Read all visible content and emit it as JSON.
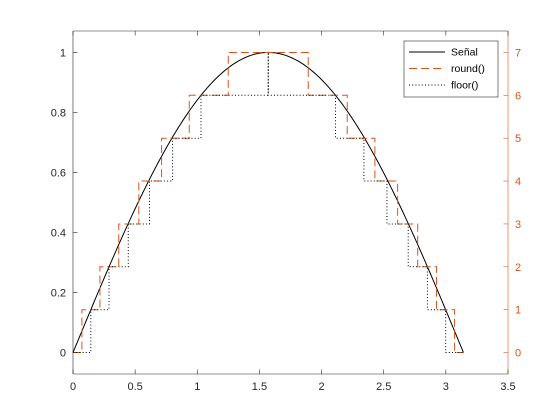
{
  "chart_data": {
    "type": "line",
    "x_range": [
      0,
      3.5
    ],
    "x_ticks": [
      "0",
      "0.5",
      "1",
      "1.5",
      "2",
      "2.5",
      "3",
      "3.5"
    ],
    "y_left_range": [
      -0.0714,
      1.0714
    ],
    "y_left_ticks": [
      "0",
      "0.2",
      "0.4",
      "0.6",
      "0.8",
      "1"
    ],
    "y_right_range": [
      -0.5,
      7.5
    ],
    "y_right_ticks": [
      "0",
      "1",
      "2",
      "3",
      "4",
      "5",
      "6",
      "7"
    ],
    "grid": false,
    "legend_position": "top-right",
    "series": [
      {
        "name": "Señal",
        "style": "solid",
        "color": "#000000",
        "function": "sin(x)",
        "x_start": 0,
        "x_end": 3.1416,
        "axis": "left"
      },
      {
        "name": "round()",
        "style": "dashed",
        "color": "#d95319",
        "axis": "right",
        "steps": [
          {
            "x0": 0.0,
            "x1": 0.0716,
            "level": 0
          },
          {
            "x0": 0.0716,
            "x1": 0.2166,
            "level": 1
          },
          {
            "x0": 0.2166,
            "x1": 0.3681,
            "level": 2
          },
          {
            "x0": 0.3681,
            "x1": 0.5296,
            "level": 3
          },
          {
            "x0": 0.5296,
            "x1": 0.7126,
            "level": 4
          },
          {
            "x0": 0.7126,
            "x1": 0.9353,
            "level": 5
          },
          {
            "x0": 0.9353,
            "x1": 1.249,
            "level": 6
          },
          {
            "x0": 1.249,
            "x1": 1.8926,
            "level": 7
          },
          {
            "x0": 1.8926,
            "x1": 2.2063,
            "level": 6
          },
          {
            "x0": 2.2063,
            "x1": 2.429,
            "level": 5
          },
          {
            "x0": 2.429,
            "x1": 2.612,
            "level": 4
          },
          {
            "x0": 2.612,
            "x1": 2.7735,
            "level": 3
          },
          {
            "x0": 2.7735,
            "x1": 2.925,
            "level": 2
          },
          {
            "x0": 2.925,
            "x1": 3.07,
            "level": 1
          },
          {
            "x0": 3.07,
            "x1": 3.1416,
            "level": 0
          }
        ]
      },
      {
        "name": "floor()",
        "style": "dotted",
        "color": "#000000",
        "axis": "right",
        "steps": [
          {
            "x0": 0.0,
            "x1": 0.1433,
            "level": 0
          },
          {
            "x0": 0.1433,
            "x1": 0.2898,
            "level": 1
          },
          {
            "x0": 0.2898,
            "x1": 0.4446,
            "level": 2
          },
          {
            "x0": 0.4446,
            "x1": 0.6155,
            "level": 3
          },
          {
            "x0": 0.6155,
            "x1": 0.8011,
            "level": 4
          },
          {
            "x0": 0.8011,
            "x1": 1.0297,
            "level": 5
          },
          {
            "x0": 1.0297,
            "x1": 1.5708,
            "level": 6
          },
          {
            "x0": 1.5708,
            "x1": 1.5708,
            "level": 7
          },
          {
            "x0": 1.5708,
            "x1": 2.1119,
            "level": 6
          },
          {
            "x0": 2.1119,
            "x1": 2.3405,
            "level": 5
          },
          {
            "x0": 2.3405,
            "x1": 2.5261,
            "level": 4
          },
          {
            "x0": 2.5261,
            "x1": 2.697,
            "level": 3
          },
          {
            "x0": 2.697,
            "x1": 2.8518,
            "level": 2
          },
          {
            "x0": 2.8518,
            "x1": 2.9983,
            "level": 1
          },
          {
            "x0": 2.9983,
            "x1": 3.1416,
            "level": 0
          }
        ]
      }
    ],
    "left_axis_color": "#262626",
    "right_axis_color": "#d95319"
  }
}
